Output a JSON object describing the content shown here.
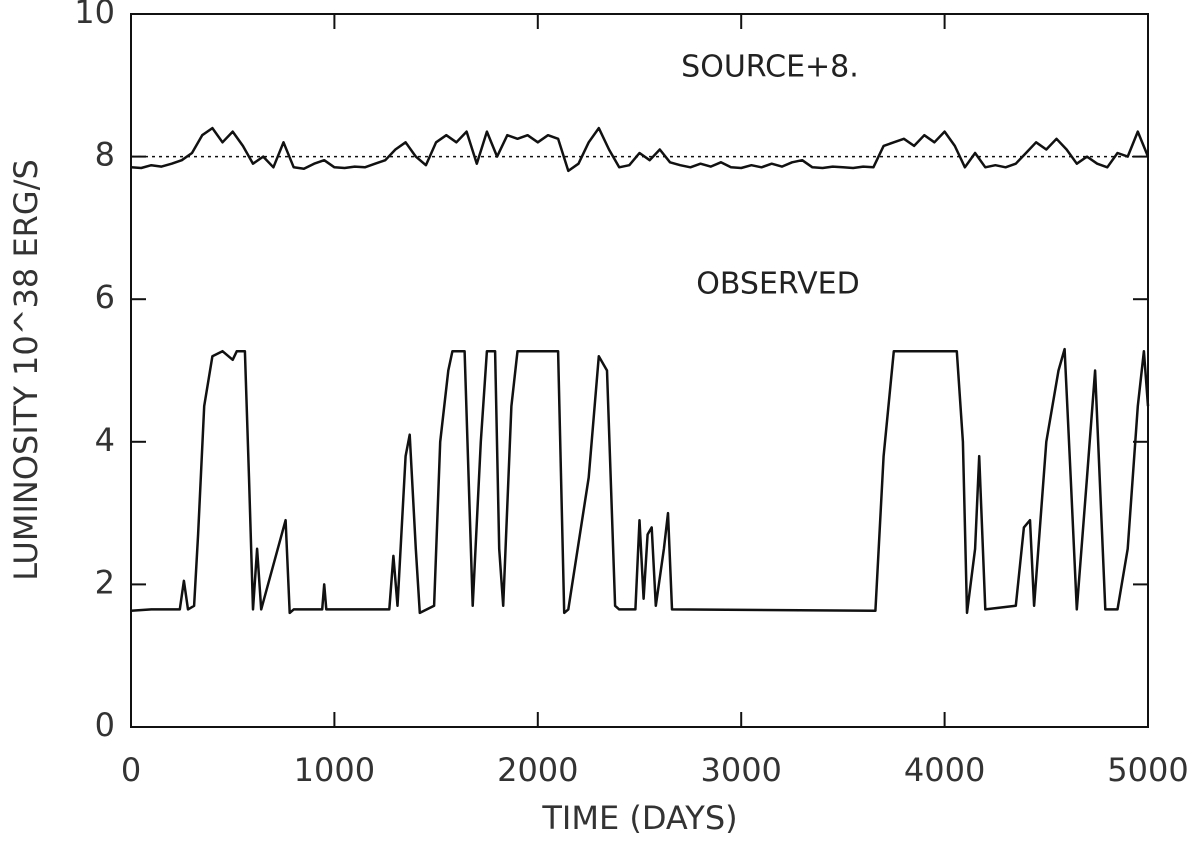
{
  "chart_data": {
    "type": "line",
    "xlabel": "TIME (DAYS)",
    "ylabel": "LUMINOSITY 10^38 ERG/S",
    "annotations": [
      "SOURCE+8.",
      "OBSERVED"
    ],
    "xlim": [
      0,
      5000
    ],
    "xticks": [
      0,
      1000,
      2000,
      3000,
      4000,
      5000
    ],
    "ylim": [
      0,
      10
    ],
    "yticks": [
      0,
      2,
      4,
      6,
      8,
      10
    ],
    "reference_y": 8,
    "series": [
      {
        "color": "#111111",
        "x": [
          0,
          50,
          100,
          150,
          200,
          250,
          300,
          350,
          400,
          450,
          500,
          550,
          600,
          650,
          700,
          750,
          800,
          850,
          900,
          950,
          1000,
          1050,
          1100,
          1150,
          1200,
          1250,
          1300,
          1350,
          1400,
          1450,
          1500,
          1550,
          1600,
          1650,
          1700,
          1750,
          1800,
          1850,
          1900,
          1950,
          2000,
          2050,
          2100,
          2150,
          2200,
          2250,
          2300,
          2350,
          2400,
          2450,
          2500,
          2550,
          2600,
          2650,
          2700,
          2750,
          2800,
          2850,
          2900,
          2950,
          3000,
          3050,
          3100,
          3150,
          3200,
          3250,
          3300,
          3350,
          3400,
          3450,
          3500,
          3550,
          3600,
          3650,
          3700,
          3750,
          3800,
          3850,
          3900,
          3950,
          4000,
          4050,
          4100,
          4150,
          4200,
          4250,
          4300,
          4350,
          4400,
          4450,
          4500,
          4550,
          4600,
          4650,
          4700,
          4750,
          4800,
          4850,
          4900,
          4950,
          5000
        ],
        "values": [
          7.85,
          7.84,
          7.88,
          7.86,
          7.9,
          7.95,
          8.05,
          8.3,
          8.4,
          8.2,
          8.35,
          8.15,
          7.9,
          8.0,
          7.85,
          8.2,
          7.85,
          7.83,
          7.9,
          7.95,
          7.85,
          7.84,
          7.86,
          7.85,
          7.9,
          7.95,
          8.1,
          8.2,
          8.0,
          7.88,
          8.2,
          8.3,
          8.2,
          8.35,
          7.9,
          8.35,
          8.0,
          8.3,
          8.25,
          8.3,
          8.2,
          8.3,
          8.25,
          7.8,
          7.9,
          8.2,
          8.4,
          8.1,
          7.85,
          7.88,
          8.05,
          7.95,
          8.1,
          7.92,
          7.88,
          7.85,
          7.9,
          7.86,
          7.92,
          7.85,
          7.84,
          7.88,
          7.85,
          7.9,
          7.86,
          7.92,
          7.95,
          7.85,
          7.84,
          7.86,
          7.85,
          7.84,
          7.86,
          7.85,
          8.15,
          8.2,
          8.25,
          8.15,
          8.3,
          8.2,
          8.35,
          8.15,
          7.85,
          8.05,
          7.85,
          7.88,
          7.85,
          7.9,
          8.05,
          8.2,
          8.1,
          8.25,
          8.1,
          7.9,
          8.0,
          7.9,
          7.85,
          8.05,
          8.0,
          8.35,
          8.0
        ]
      },
      {
        "color": "#111111",
        "x": [
          0,
          100,
          240,
          260,
          280,
          310,
          330,
          360,
          400,
          450,
          500,
          520,
          560,
          580,
          600,
          620,
          640,
          760,
          780,
          800,
          940,
          950,
          960,
          1270,
          1290,
          1310,
          1350,
          1370,
          1400,
          1420,
          1490,
          1520,
          1560,
          1580,
          1640,
          1660,
          1680,
          1720,
          1750,
          1790,
          1810,
          1830,
          1870,
          1900,
          2100,
          2130,
          2150,
          2250,
          2300,
          2340,
          2380,
          2400,
          2480,
          2500,
          2520,
          2540,
          2560,
          2580,
          2620,
          2640,
          2660,
          3660,
          3700,
          3750,
          4060,
          4090,
          4110,
          4150,
          4170,
          4200,
          4350,
          4390,
          4420,
          4440,
          4500,
          4560,
          4590,
          4620,
          4650,
          4700,
          4740,
          4770,
          4790,
          4850,
          4900,
          4950,
          4980,
          5000
        ],
        "values": [
          1.63,
          1.65,
          1.65,
          2.05,
          1.65,
          1.7,
          2.7,
          4.5,
          5.2,
          5.27,
          5.15,
          5.27,
          5.27,
          3.5,
          1.65,
          2.5,
          1.65,
          2.9,
          1.6,
          1.65,
          1.65,
          2.0,
          1.65,
          1.65,
          2.4,
          1.7,
          3.8,
          4.1,
          2.5,
          1.6,
          1.7,
          4.0,
          5.0,
          5.27,
          5.27,
          3.5,
          1.7,
          4.0,
          5.27,
          5.27,
          2.5,
          1.7,
          4.5,
          5.27,
          5.27,
          1.6,
          1.65,
          3.5,
          5.2,
          5.0,
          1.7,
          1.65,
          1.65,
          2.9,
          1.8,
          2.7,
          2.8,
          1.7,
          2.5,
          3.0,
          1.65,
          1.63,
          3.8,
          5.27,
          5.27,
          4.0,
          1.6,
          2.5,
          3.8,
          1.65,
          1.7,
          2.8,
          2.9,
          1.7,
          4.0,
          5.0,
          5.3,
          3.5,
          1.65,
          3.5,
          5.0,
          3.0,
          1.65,
          1.65,
          2.5,
          4.5,
          5.27,
          4.5
        ]
      }
    ]
  }
}
